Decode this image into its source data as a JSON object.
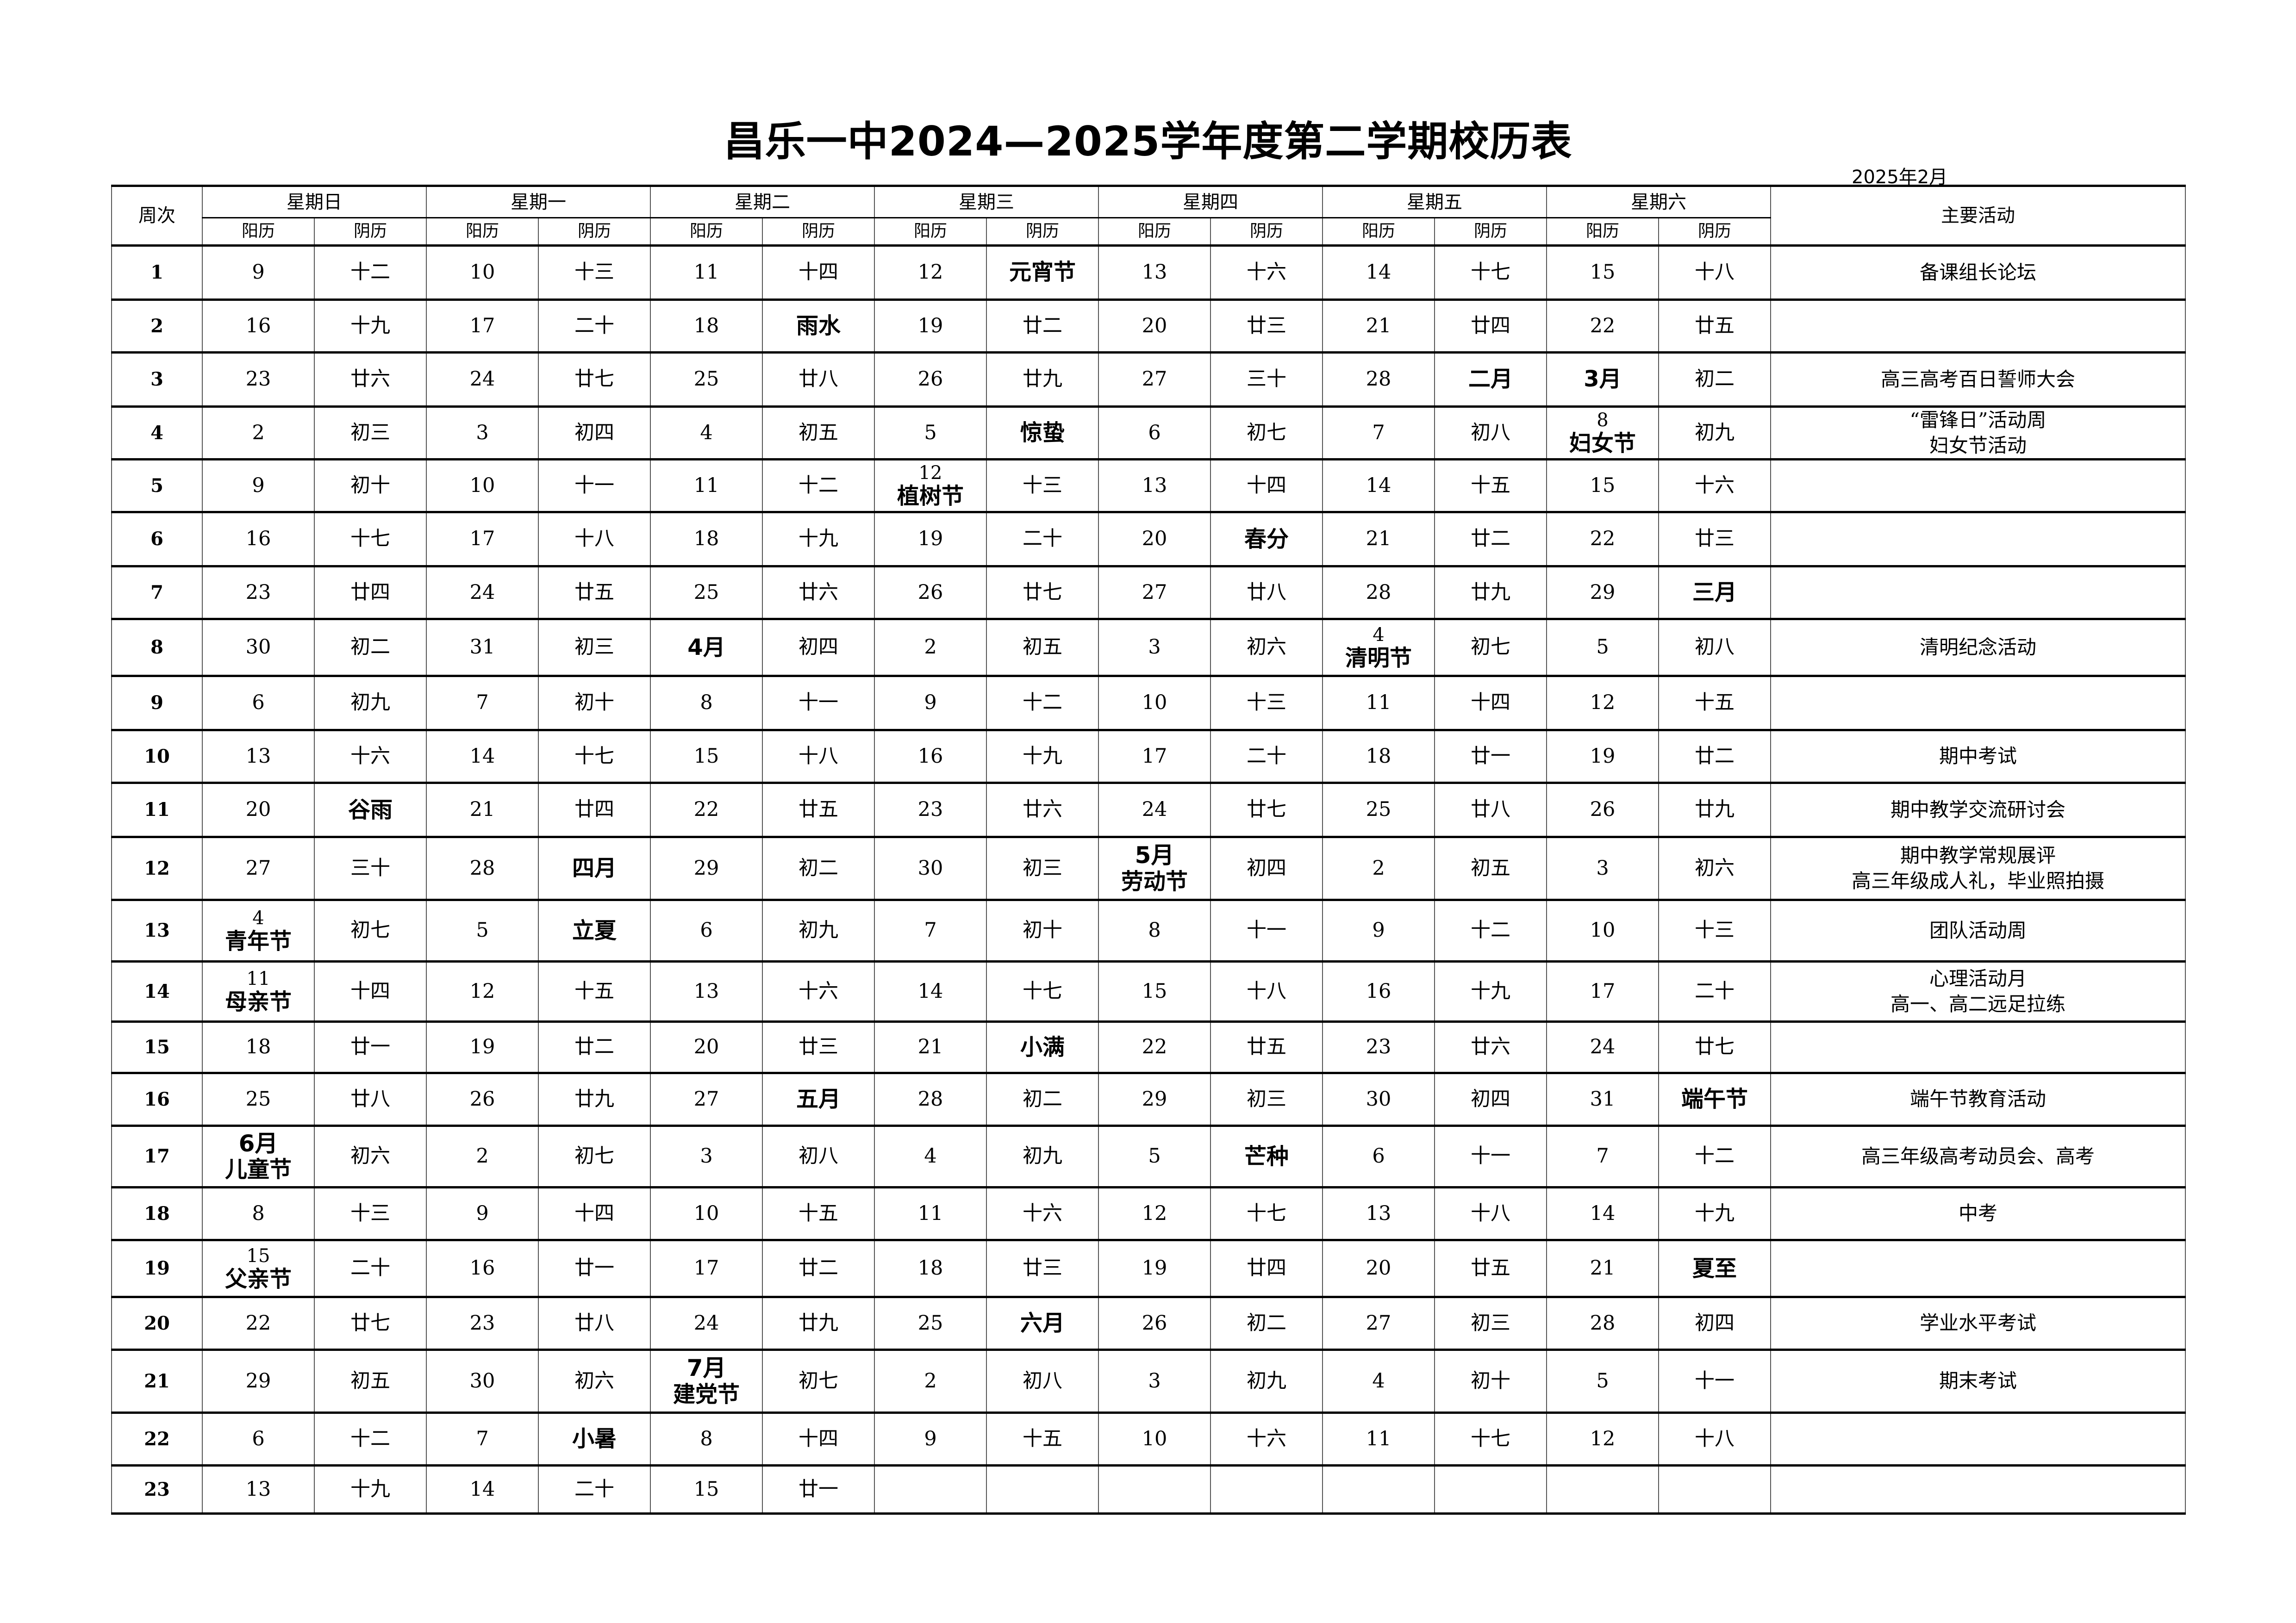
{
  "title": "昌乐一中2024—2025学年度第二学期校历表",
  "date_label": "2025年2月",
  "header": {
    "week": "周次",
    "days": [
      "星期日",
      "星期一",
      "星期二",
      "星期三",
      "星期四",
      "星期五",
      "星期六"
    ],
    "solar": "阳历",
    "lunar": "阴历",
    "activities": "主要活动"
  },
  "rows": [
    {
      "week": "1",
      "cells": [
        "9",
        "十二",
        "10",
        "十三",
        "11",
        "十四",
        "12",
        {
          "t": "元宵节",
          "b": true
        },
        "13",
        "十六",
        "14",
        "十七",
        "15",
        "十八"
      ],
      "activity": "备课组长论坛"
    },
    {
      "week": "2",
      "cells": [
        "16",
        "十九",
        "17",
        "二十",
        "18",
        {
          "t": "雨水",
          "b": true
        },
        "19",
        "廿二",
        "20",
        "廿三",
        "21",
        "廿四",
        "22",
        "廿五"
      ],
      "activity": ""
    },
    {
      "week": "3",
      "cells": [
        "23",
        "廿六",
        "24",
        "廿七",
        "25",
        "廿八",
        "26",
        "廿九",
        "27",
        "三十",
        "28",
        {
          "t": "二月",
          "b": true
        },
        {
          "t": "3月",
          "b": true
        },
        "初二"
      ],
      "activity": "高三高考百日誓师大会"
    },
    {
      "week": "4",
      "cells": [
        "2",
        "初三",
        "3",
        "初四",
        "4",
        "初五",
        "5",
        {
          "t": "惊蛰",
          "b": true
        },
        "6",
        "初七",
        "7",
        "初八",
        {
          "top": "8",
          "main": "妇女节"
        },
        "初九"
      ],
      "activity": "“雷锋日”活动周\n妇女节活动"
    },
    {
      "week": "5",
      "cells": [
        "9",
        "初十",
        "10",
        "十一",
        "11",
        "十二",
        {
          "top": "12",
          "main": "植树节"
        },
        "十三",
        "13",
        "十四",
        "14",
        "十五",
        "15",
        "十六"
      ],
      "activity": ""
    },
    {
      "week": "6",
      "cells": [
        "16",
        "十七",
        "17",
        "十八",
        "18",
        "十九",
        "19",
        "二十",
        "20",
        {
          "t": "春分",
          "b": true
        },
        "21",
        "廿二",
        "22",
        "廿三"
      ],
      "activity": ""
    },
    {
      "week": "7",
      "cells": [
        "23",
        "廿四",
        "24",
        "廿五",
        "25",
        "廿六",
        "26",
        "廿七",
        "27",
        "廿八",
        "28",
        "廿九",
        "29",
        {
          "t": "三月",
          "b": true
        }
      ],
      "activity": ""
    },
    {
      "week": "8",
      "cells": [
        "30",
        "初二",
        "31",
        "初三",
        {
          "t": "4月",
          "b": true
        },
        "初四",
        "2",
        "初五",
        "3",
        "初六",
        {
          "top": "4",
          "main": "清明节"
        },
        "初七",
        "5",
        "初八"
      ],
      "activity": "清明纪念活动"
    },
    {
      "week": "9",
      "cells": [
        "6",
        "初九",
        "7",
        "初十",
        "8",
        "十一",
        "9",
        "十二",
        "10",
        "十三",
        "11",
        "十四",
        "12",
        "十五"
      ],
      "activity": ""
    },
    {
      "week": "10",
      "cells": [
        "13",
        "十六",
        "14",
        "十七",
        "15",
        "十八",
        "16",
        "十九",
        "17",
        "二十",
        "18",
        "廿一",
        "19",
        "廿二"
      ],
      "activity": "期中考试"
    },
    {
      "week": "11",
      "cells": [
        "20",
        {
          "t": "谷雨",
          "b": true
        },
        "21",
        "廿四",
        "22",
        "廿五",
        "23",
        "廿六",
        "24",
        "廿七",
        "25",
        "廿八",
        "26",
        "廿九"
      ],
      "activity": "期中教学交流研讨会"
    },
    {
      "week": "12",
      "cells": [
        "27",
        "三十",
        "28",
        {
          "t": "四月",
          "b": true
        },
        "29",
        "初二",
        "30",
        "初三",
        {
          "top": "5月",
          "main": "劳动节",
          "b": true
        },
        "初四",
        "2",
        "初五",
        "3",
        "初六"
      ],
      "activity": "期中教学常规展评\n高三年级成人礼，毕业照拍摄"
    },
    {
      "week": "13",
      "cells": [
        {
          "top": "4",
          "main": "青年节"
        },
        "初七",
        "5",
        {
          "t": "立夏",
          "b": true
        },
        "6",
        "初九",
        "7",
        "初十",
        "8",
        "十一",
        "9",
        "十二",
        "10",
        "十三"
      ],
      "activity": "团队活动周"
    },
    {
      "week": "14",
      "cells": [
        {
          "top": "11",
          "main": "母亲节"
        },
        "十四",
        "12",
        "十五",
        "13",
        "十六",
        "14",
        "十七",
        "15",
        "十八",
        "16",
        "十九",
        "17",
        "二十"
      ],
      "activity": "心理活动月\n高一、高二远足拉练"
    },
    {
      "week": "15",
      "cells": [
        "18",
        "廿一",
        "19",
        "廿二",
        "20",
        "廿三",
        "21",
        {
          "t": "小满",
          "b": true
        },
        "22",
        "廿五",
        "23",
        "廿六",
        "24",
        "廿七"
      ],
      "activity": ""
    },
    {
      "week": "16",
      "cells": [
        "25",
        "廿八",
        "26",
        "廿九",
        "27",
        {
          "t": "五月",
          "b": true
        },
        "28",
        "初二",
        "29",
        "初三",
        "30",
        "初四",
        "31",
        {
          "t": "端午节",
          "b": true
        }
      ],
      "activity": "端午节教育活动"
    },
    {
      "week": "17",
      "cells": [
        {
          "top": "6月",
          "main": "儿童节",
          "b": true
        },
        "初六",
        "2",
        "初七",
        "3",
        "初八",
        "4",
        "初九",
        "5",
        {
          "t": "芒种",
          "b": true
        },
        "6",
        "十一",
        "7",
        "十二"
      ],
      "activity": "高三年级高考动员会、高考"
    },
    {
      "week": "18",
      "cells": [
        "8",
        "十三",
        "9",
        "十四",
        "10",
        "十五",
        "11",
        "十六",
        "12",
        "十七",
        "13",
        "十八",
        "14",
        "十九"
      ],
      "activity": "中考"
    },
    {
      "week": "19",
      "cells": [
        {
          "top": "15",
          "main": "父亲节"
        },
        "二十",
        "16",
        "廿一",
        "17",
        "廿二",
        "18",
        "廿三",
        "19",
        "廿四",
        "20",
        "廿五",
        "21",
        {
          "t": "夏至",
          "b": true
        }
      ],
      "activity": ""
    },
    {
      "week": "20",
      "cells": [
        "22",
        "廿七",
        "23",
        "廿八",
        "24",
        "廿九",
        "25",
        {
          "t": "六月",
          "b": true
        },
        "26",
        "初二",
        "27",
        "初三",
        "28",
        "初四"
      ],
      "activity": "学业水平考试"
    },
    {
      "week": "21",
      "cells": [
        "29",
        "初五",
        "30",
        "初六",
        {
          "top": "7月",
          "main": "建党节",
          "b": true
        },
        "初七",
        "2",
        "初八",
        "3",
        "初九",
        "4",
        "初十",
        "5",
        "十一"
      ],
      "activity": "期末考试"
    },
    {
      "week": "22",
      "cells": [
        "6",
        "十二",
        "7",
        {
          "t": "小暑",
          "b": true
        },
        "8",
        "十四",
        "9",
        "十五",
        "10",
        "十六",
        "11",
        "十七",
        "12",
        "十八"
      ],
      "activity": ""
    },
    {
      "week": "23",
      "cells": [
        "13",
        "十九",
        "14",
        "二十",
        "15",
        "廿一",
        "",
        "",
        "",
        "",
        "",
        "",
        "",
        ""
      ],
      "activity": ""
    }
  ]
}
